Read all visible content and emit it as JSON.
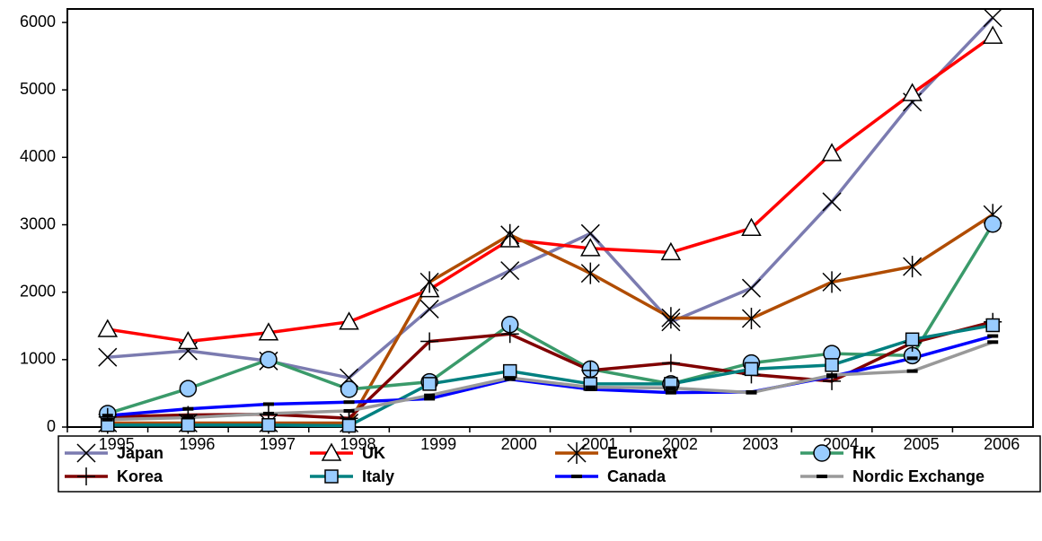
{
  "chart_data": {
    "type": "line",
    "categories": [
      "1995",
      "1996",
      "1997",
      "1998",
      "1999",
      "2000",
      "2001",
      "2002",
      "2003",
      "2004",
      "2005",
      "2006"
    ],
    "ylim": [
      0,
      6200
    ],
    "yticks": [
      0,
      1000,
      2000,
      3000,
      4000,
      5000,
      6000
    ],
    "grid": false,
    "series": [
      {
        "name": "Japan",
        "color": "#7b7bb0",
        "marker": "x",
        "values": [
          1035,
          1130,
          980,
          730,
          1750,
          2320,
          2870,
          1560,
          2060,
          3340,
          4820,
          6070
        ]
      },
      {
        "name": "UK",
        "color": "#ff0000",
        "marker": "triangle",
        "values": [
          1450,
          1270,
          1400,
          1560,
          2040,
          2780,
          2650,
          2590,
          2950,
          4060,
          4950,
          5800
        ]
      },
      {
        "name": "Euronext",
        "color": "#b04c00",
        "marker": "star",
        "values": [
          60,
          60,
          60,
          60,
          2150,
          2850,
          2280,
          1620,
          1610,
          2150,
          2380,
          3150
        ]
      },
      {
        "name": "HK",
        "color": "#3a9a6a",
        "marker": "circle",
        "values": [
          200,
          570,
          1000,
          560,
          670,
          1520,
          860,
          640,
          950,
          1090,
          1060,
          3010
        ]
      },
      {
        "name": "Korea",
        "color": "#800000",
        "marker": "plus",
        "values": [
          150,
          180,
          190,
          130,
          1270,
          1380,
          840,
          950,
          780,
          680,
          1250,
          1560
        ]
      },
      {
        "name": "Italy",
        "color": "#008080",
        "marker": "square",
        "values": [
          30,
          30,
          30,
          20,
          640,
          830,
          640,
          640,
          860,
          920,
          1300,
          1510
        ]
      },
      {
        "name": "Canada",
        "color": "#0000ff",
        "marker": "dash",
        "values": [
          170,
          270,
          340,
          370,
          420,
          710,
          560,
          510,
          520,
          750,
          1020,
          1350
        ]
      },
      {
        "name": "Nordic Exchange",
        "color": "#999999",
        "marker": "dash",
        "values": [
          110,
          140,
          200,
          240,
          470,
          730,
          590,
          580,
          510,
          770,
          830,
          1260
        ]
      }
    ]
  }
}
